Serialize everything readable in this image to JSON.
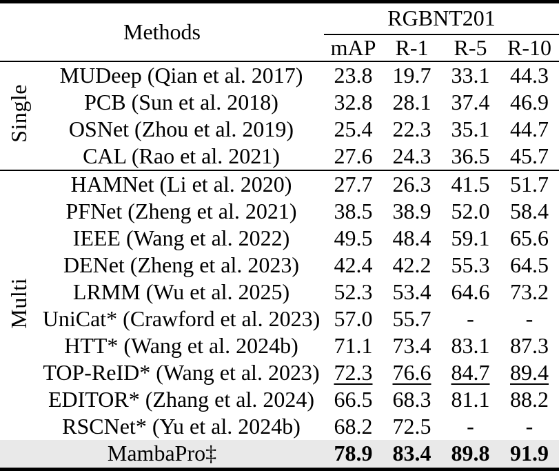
{
  "colors": {
    "text": "#000000",
    "background": "#ffffff",
    "highlight_row_bg": "#e9e9e9",
    "rule": "#000000"
  },
  "header": {
    "methods_label": "Methods",
    "dataset_label": "RGBNT201",
    "metrics": [
      "mAP",
      "R-1",
      "R-5",
      "R-10"
    ]
  },
  "groups": [
    {
      "label": "Single",
      "rows": [
        {
          "method": "MUDeep (Qian et al. 2017)",
          "values": [
            "23.8",
            "19.7",
            "33.1",
            "44.3"
          ]
        },
        {
          "method": "PCB (Sun et al. 2018)",
          "values": [
            "32.8",
            "28.1",
            "37.4",
            "46.9"
          ]
        },
        {
          "method": "OSNet (Zhou et al. 2019)",
          "values": [
            "25.4",
            "22.3",
            "35.1",
            "44.7"
          ]
        },
        {
          "method": "CAL (Rao et al. 2021)",
          "values": [
            "27.6",
            "24.3",
            "36.5",
            "45.7"
          ]
        }
      ]
    },
    {
      "label": "Multi",
      "rows": [
        {
          "method": "HAMNet (Li et al. 2020)",
          "values": [
            "27.7",
            "26.3",
            "41.5",
            "51.7"
          ]
        },
        {
          "method": "PFNet (Zheng et al. 2021)",
          "values": [
            "38.5",
            "38.9",
            "52.0",
            "58.4"
          ]
        },
        {
          "method": "IEEE (Wang et al. 2022)",
          "values": [
            "49.5",
            "48.4",
            "59.1",
            "65.6"
          ]
        },
        {
          "method": "DENet (Zheng et al. 2023)",
          "values": [
            "42.4",
            "42.2",
            "55.3",
            "64.5"
          ]
        },
        {
          "method": "LRMM (Wu et al. 2025)",
          "values": [
            "52.3",
            "53.4",
            "64.6",
            "73.2"
          ]
        },
        {
          "method": "UniCat* (Crawford et al. 2023)",
          "values": [
            "57.0",
            "55.7",
            "-",
            "-"
          ]
        },
        {
          "method": "HTT* (Wang et al. 2024b)",
          "values": [
            "71.1",
            "73.4",
            "83.1",
            "87.3"
          ]
        },
        {
          "method": "TOP-ReID* (Wang et al. 2023)",
          "values": [
            "72.3",
            "76.6",
            "84.7",
            "89.4"
          ],
          "underline": true
        },
        {
          "method": "EDITOR* (Zhang et al. 2024)",
          "values": [
            "66.5",
            "68.3",
            "81.1",
            "88.2"
          ]
        },
        {
          "method": "RSCNet* (Yu et al. 2024b)",
          "values": [
            "68.2",
            "72.5",
            "-",
            "-"
          ]
        }
      ]
    }
  ],
  "footer": {
    "method": "MambaPro‡",
    "values": [
      "78.9",
      "83.4",
      "89.8",
      "91.9"
    ],
    "bold": true,
    "highlighted": true
  }
}
